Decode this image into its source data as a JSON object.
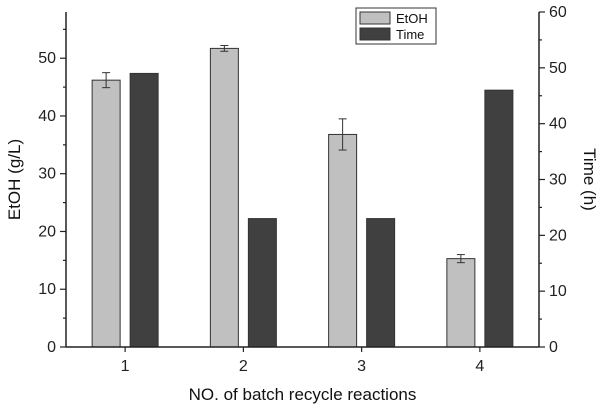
{
  "chart_data": {
    "type": "bar",
    "categories": [
      "1",
      "2",
      "3",
      "4"
    ],
    "xlabel": "NO. of batch recycle reactions",
    "y_left": {
      "label": "EtOH (g/L)",
      "range": [
        0,
        58
      ],
      "ticks": [
        0,
        10,
        20,
        30,
        40,
        50
      ]
    },
    "y_right": {
      "label": "Time (h)",
      "range": [
        0,
        60
      ],
      "ticks": [
        0,
        10,
        20,
        30,
        40,
        50,
        60
      ]
    },
    "series": [
      {
        "name": "EtOH",
        "axis": "left",
        "color": "#c0c0c0",
        "values": [
          46.2,
          51.7,
          36.8,
          15.3
        ],
        "error": [
          1.3,
          0.5,
          2.7,
          0.7
        ]
      },
      {
        "name": "Time",
        "axis": "right",
        "color": "#404040",
        "values": [
          49,
          23,
          23,
          46
        ]
      }
    ],
    "legend": "top-right",
    "grid": false
  }
}
